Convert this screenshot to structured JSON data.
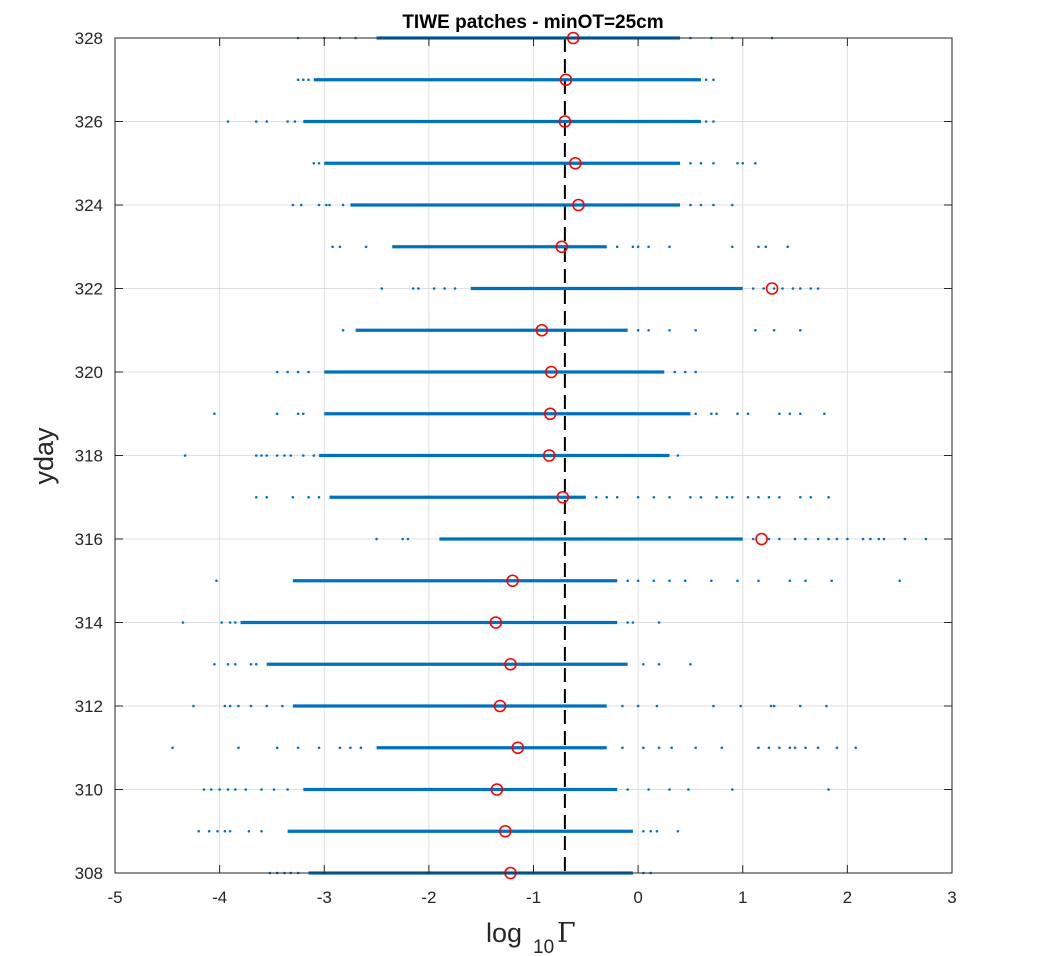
{
  "chart_data": {
    "type": "scatter",
    "title": "TIWE patches - minOT=25cm",
    "xlabel": "log",
    "xlabel_subscript": "10",
    "xlabel_symbol": "Γ",
    "ylabel": "yday",
    "xlim": [
      -5,
      3
    ],
    "ylim": [
      308,
      328
    ],
    "xticks": [
      -5,
      -4,
      -3,
      -2,
      -1,
      0,
      1,
      2,
      3
    ],
    "yticks": [
      308,
      310,
      312,
      314,
      316,
      318,
      320,
      322,
      324,
      326,
      328
    ],
    "grid": true,
    "reference_line": {
      "x": -0.7,
      "style": "dashed",
      "color": "#000000"
    },
    "colors": {
      "points": "#0072BD",
      "median": "#FF0000",
      "axes": "#262626",
      "grid": "#DFDFDF"
    },
    "series": [
      {
        "name": "patches",
        "days": [
          {
            "yday": 308,
            "core": [
              -3.15,
              -0.05
            ],
            "outliers": [
              -3.52,
              -3.45,
              -3.38,
              -3.32,
              -3.25,
              0.05,
              0.12
            ]
          },
          {
            "yday": 309,
            "core": [
              -3.35,
              -0.05
            ],
            "outliers": [
              -4.2,
              -4.1,
              -4.02,
              -3.95,
              -3.9,
              -3.72,
              -3.6,
              0.05,
              0.12,
              0.18,
              0.38
            ]
          },
          {
            "yday": 310,
            "core": [
              -3.2,
              -0.2
            ],
            "outliers": [
              -4.15,
              -4.08,
              -4.0,
              -3.92,
              -3.85,
              -3.75,
              -3.6,
              -3.48,
              -3.35,
              -0.1,
              0.1,
              0.3,
              0.48,
              0.9,
              1.82
            ]
          },
          {
            "yday": 311,
            "core": [
              -2.5,
              -0.3
            ],
            "outliers": [
              -4.45,
              -3.82,
              -3.45,
              -3.25,
              -3.05,
              -2.85,
              -2.75,
              -2.65,
              -0.15,
              0.05,
              0.2,
              0.32,
              0.55,
              0.8,
              1.15,
              1.25,
              1.35,
              1.45,
              1.5,
              1.6,
              1.72,
              1.9,
              2.08
            ]
          },
          {
            "yday": 312,
            "core": [
              -3.3,
              -0.3
            ],
            "outliers": [
              -4.25,
              -3.95,
              -3.9,
              -3.82,
              -3.7,
              -3.55,
              -3.4,
              -0.15,
              0.0,
              0.18,
              0.72,
              0.98,
              1.27,
              1.3,
              1.55,
              1.8
            ]
          },
          {
            "yday": 313,
            "core": [
              -3.55,
              -0.1
            ],
            "outliers": [
              -4.05,
              -3.92,
              -3.85,
              -3.7,
              -3.65,
              0.05,
              0.2,
              0.5
            ]
          },
          {
            "yday": 314,
            "core": [
              -3.8,
              -0.2
            ],
            "outliers": [
              -4.35,
              -3.98,
              -3.9,
              -3.85,
              -0.1,
              -0.05,
              0.2
            ]
          },
          {
            "yday": 315,
            "core": [
              -3.3,
              -0.2
            ],
            "outliers": [
              -4.03,
              -0.1,
              0.0,
              0.15,
              0.3,
              0.45,
              0.7,
              0.95,
              1.15,
              1.45,
              1.6,
              1.85,
              2.5
            ]
          },
          {
            "yday": 316,
            "core": [
              -1.9,
              1.0
            ],
            "outliers": [
              -2.5,
              -2.25,
              -2.2,
              1.1,
              1.25,
              1.35,
              1.5,
              1.6,
              1.72,
              1.82,
              1.9,
              2.0,
              2.15,
              2.22,
              2.3,
              2.35,
              2.55,
              2.75
            ]
          },
          {
            "yday": 317,
            "core": [
              -2.95,
              -0.5
            ],
            "outliers": [
              -3.65,
              -3.55,
              -3.3,
              -3.15,
              -3.05,
              -0.4,
              -0.3,
              -0.2,
              0.0,
              0.15,
              0.3,
              0.5,
              0.6,
              0.75,
              0.85,
              0.9,
              1.05,
              1.15,
              1.25,
              1.35,
              1.55,
              1.65,
              1.82
            ]
          },
          {
            "yday": 318,
            "core": [
              -3.05,
              0.3
            ],
            "outliers": [
              -4.33,
              -3.65,
              -3.6,
              -3.55,
              -3.45,
              -3.38,
              -3.32,
              -3.2,
              -3.1,
              0.38
            ]
          },
          {
            "yday": 319,
            "core": [
              -3.0,
              0.5
            ],
            "outliers": [
              -4.05,
              -3.45,
              -3.25,
              -3.2,
              0.55,
              0.7,
              0.75,
              0.95,
              1.05,
              1.35,
              1.45,
              1.55,
              1.78
            ]
          },
          {
            "yday": 320,
            "core": [
              -3.0,
              0.25
            ],
            "outliers": [
              -3.45,
              -3.35,
              -3.25,
              -3.15,
              0.35,
              0.45,
              0.55
            ]
          },
          {
            "yday": 321,
            "core": [
              -2.7,
              -0.1
            ],
            "outliers": [
              -2.82,
              0.0,
              0.1,
              0.3,
              0.55,
              1.12,
              1.3,
              1.55
            ]
          },
          {
            "yday": 322,
            "core": [
              -1.6,
              1.0
            ],
            "outliers": [
              -2.45,
              -2.15,
              -2.1,
              -1.95,
              -1.85,
              -1.75,
              1.1,
              1.2,
              1.3,
              1.38,
              1.48,
              1.55,
              1.65,
              1.72
            ]
          },
          {
            "yday": 323,
            "core": [
              -2.35,
              -0.3
            ],
            "outliers": [
              -2.92,
              -2.85,
              -2.6,
              -0.2,
              -0.05,
              0.0,
              0.1,
              0.3,
              0.9,
              1.15,
              1.22,
              1.43
            ]
          },
          {
            "yday": 324,
            "core": [
              -2.75,
              0.4
            ],
            "outliers": [
              -3.3,
              -3.22,
              -3.05,
              -2.98,
              -2.95,
              -2.82,
              0.5,
              0.6,
              0.72,
              0.9
            ]
          },
          {
            "yday": 325,
            "core": [
              -3.0,
              0.4
            ],
            "outliers": [
              -3.1,
              -3.05,
              0.5,
              0.6,
              0.72,
              0.95,
              1.0,
              1.12
            ]
          },
          {
            "yday": 326,
            "core": [
              -3.2,
              0.6
            ],
            "outliers": [
              -3.92,
              -3.65,
              -3.55,
              -3.35,
              -3.28,
              0.65,
              0.72
            ]
          },
          {
            "yday": 327,
            "core": [
              -3.1,
              0.6
            ],
            "outliers": [
              -3.25,
              -3.2,
              -3.15,
              0.65,
              0.72
            ]
          },
          {
            "yday": 328,
            "core": [
              -2.5,
              0.4
            ],
            "outliers": [
              -3.25,
              -3.0,
              -2.85,
              -2.7,
              0.5,
              0.7,
              0.9,
              1.28
            ]
          }
        ]
      },
      {
        "name": "median",
        "points": [
          {
            "yday": 308,
            "x": -1.22
          },
          {
            "yday": 309,
            "x": -1.27
          },
          {
            "yday": 310,
            "x": -1.35
          },
          {
            "yday": 311,
            "x": -1.15
          },
          {
            "yday": 312,
            "x": -1.32
          },
          {
            "yday": 313,
            "x": -1.22
          },
          {
            "yday": 314,
            "x": -1.36
          },
          {
            "yday": 315,
            "x": -1.2
          },
          {
            "yday": 316,
            "x": 1.18
          },
          {
            "yday": 317,
            "x": -0.72
          },
          {
            "yday": 318,
            "x": -0.85
          },
          {
            "yday": 319,
            "x": -0.84
          },
          {
            "yday": 320,
            "x": -0.83
          },
          {
            "yday": 321,
            "x": -0.92
          },
          {
            "yday": 322,
            "x": 1.28
          },
          {
            "yday": 323,
            "x": -0.73
          },
          {
            "yday": 324,
            "x": -0.57
          },
          {
            "yday": 325,
            "x": -0.6
          },
          {
            "yday": 326,
            "x": -0.7
          },
          {
            "yday": 327,
            "x": -0.69
          },
          {
            "yday": 328,
            "x": -0.62
          }
        ]
      }
    ]
  }
}
